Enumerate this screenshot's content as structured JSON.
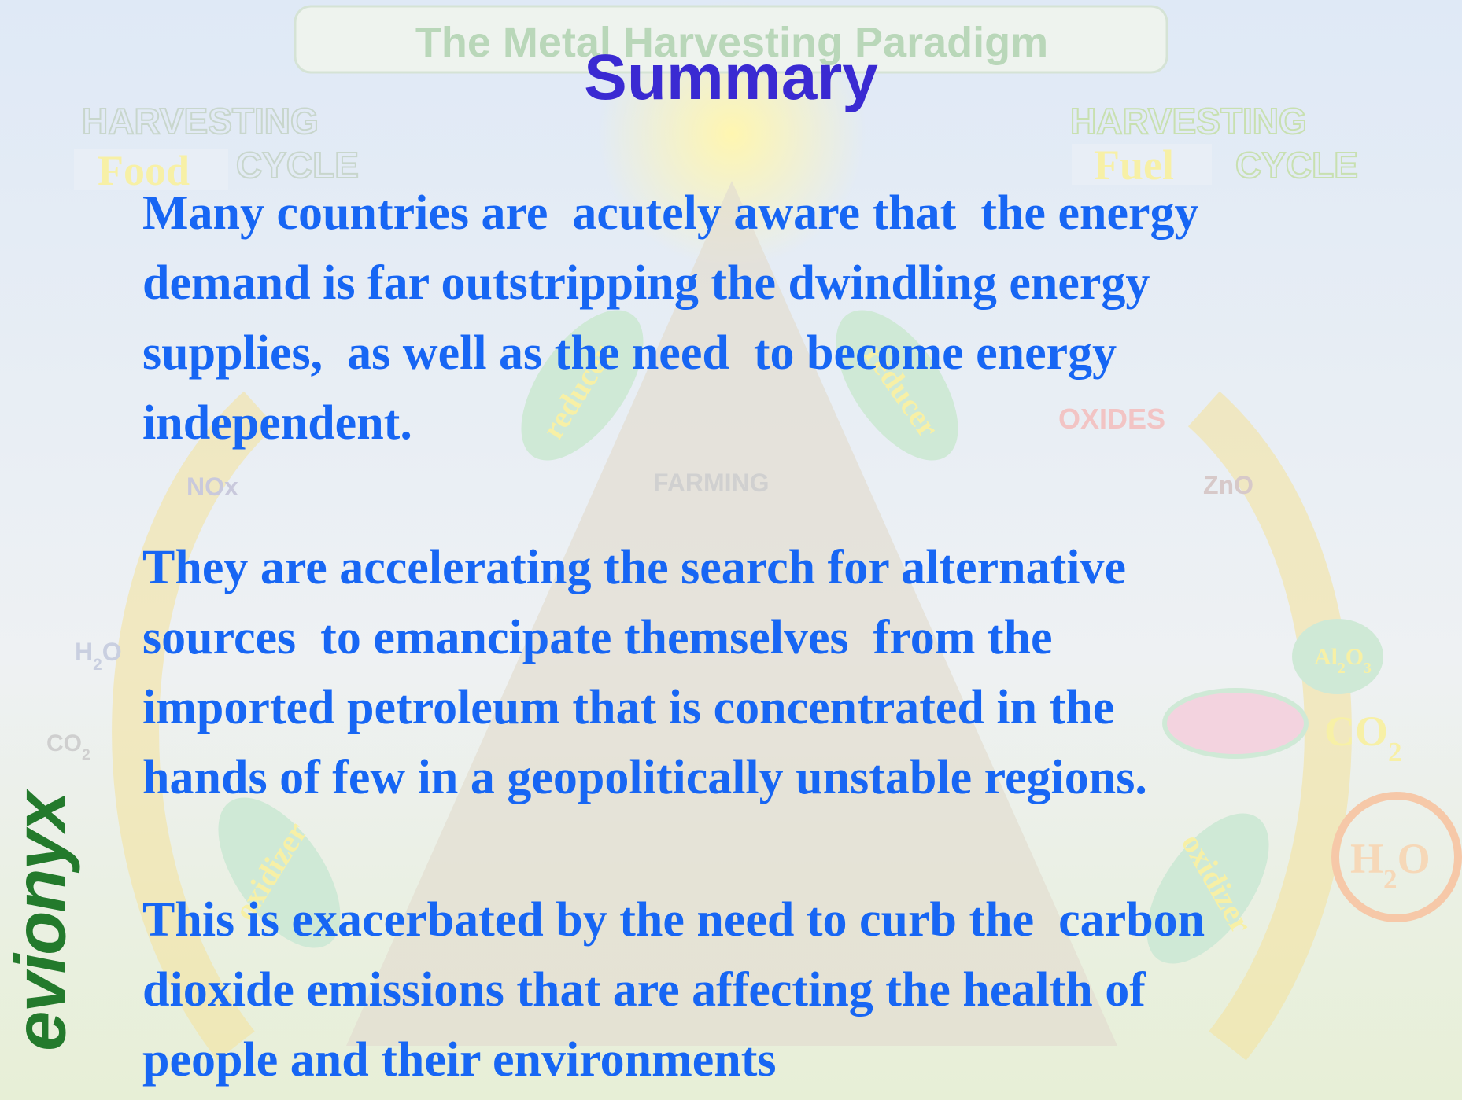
{
  "slide": {
    "title": "Summary",
    "paragraphs": [
      [
        "Many countries are  acutely aware that  the energy",
        "demand is far outstripping the dwindling energy",
        "supplies,  as well as the need  to become energy",
        "independent."
      ],
      [
        "They are accelerating the search for alternative",
        "sources  to emancipate themselves  from the",
        "imported petroleum that is concentrated in the",
        "hands of few in a geopolitically unstable regions."
      ],
      [
        "This is exacerbated by the need to curb the  carbon",
        "dioxide emissions that are affecting the health of",
        "people and their environments"
      ]
    ],
    "background": {
      "banner": "The Metal Harvesting Paradigm",
      "left_cycle": [
        "HARVESTING",
        "CYCLE"
      ],
      "right_cycle": [
        "HARVESTING",
        "CYCLE"
      ],
      "food": "Food",
      "fuel": "Fuel",
      "reducer_left": "reducer",
      "reducer_right": "reducer",
      "oxides": "OXIDES",
      "farming": "FARMING",
      "nox": "NOx",
      "zno": "ZnO",
      "h2o_left": "H2O",
      "co2_left": "CO2",
      "al2o3": "Al2O3",
      "co2_right": "CO2",
      "h2o_right": "H2O",
      "oxidizer_left": "oxidizer",
      "oxidizer_right": "oxidizer"
    },
    "logo": "evionyx"
  }
}
